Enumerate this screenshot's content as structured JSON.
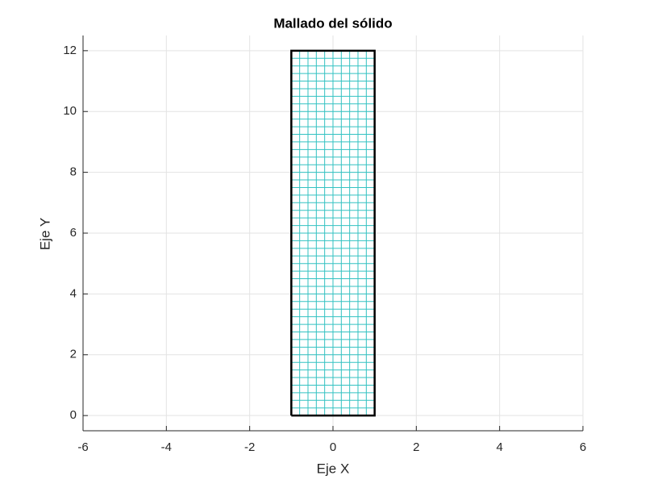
{
  "chart_data": {
    "type": "mesh",
    "title": "Mallado del sólido",
    "xlabel": "Eje X",
    "ylabel": "Eje Y",
    "xlim": [
      -6,
      6
    ],
    "ylim": [
      -0.5,
      12.5
    ],
    "xticks": [
      -6,
      -4,
      -2,
      0,
      2,
      4,
      6
    ],
    "yticks": [
      0,
      2,
      4,
      6,
      8,
      10,
      12
    ],
    "grid": true,
    "mesh_color": "#33c2c2",
    "outline_color": "#000000",
    "mesh_x": [
      -1,
      -0.8,
      -0.6,
      -0.4,
      -0.2,
      0,
      0.2,
      0.4,
      0.6,
      0.8,
      1
    ],
    "mesh_y": [
      0,
      0.25,
      0.5,
      0.75,
      1,
      1.25,
      1.5,
      1.75,
      2,
      2.25,
      2.5,
      2.75,
      3,
      3.25,
      3.5,
      3.75,
      4,
      4.25,
      4.5,
      4.75,
      5,
      5.25,
      5.5,
      5.75,
      6,
      6.25,
      6.5,
      6.75,
      7,
      7.25,
      7.5,
      7.75,
      8,
      8.25,
      8.5,
      8.75,
      9,
      9.25,
      9.5,
      9.75,
      10,
      10.25,
      10.5,
      10.75,
      11,
      11.25,
      11.5,
      11.75,
      12
    ],
    "outline": {
      "x": [
        -1,
        1,
        1,
        -1,
        -1
      ],
      "y": [
        0,
        0,
        12,
        12,
        0
      ]
    }
  }
}
